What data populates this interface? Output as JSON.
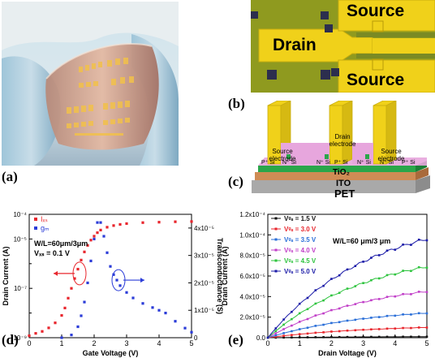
{
  "panels": {
    "a": {
      "letter": "(a)"
    },
    "b": {
      "letter": "(b)",
      "source_top": "Source",
      "drain": "Drain",
      "source_bottom": "Source"
    },
    "c": {
      "letter": "(c)",
      "electrodes": [
        "Source\nelectrode",
        "Drain\nelectrode",
        "Source\nelectrode"
      ],
      "doping": [
        "P⁺ Si",
        "N⁺ Si",
        "N⁺ Si",
        "P⁺ Si",
        "N⁺ Si",
        "N⁺ Si",
        "P⁺ Si"
      ],
      "layers": [
        "TiO₂",
        "ITO",
        "PET"
      ]
    },
    "d": {
      "letter": "(d)"
    },
    "e": {
      "letter": "(e)"
    }
  },
  "colors": {
    "ids": "#e8262d",
    "gm": "#2b3cd8",
    "gold": "#f0d11a",
    "pet": "#b0b0b0",
    "ito": "#cf8c55",
    "tio2": "#2aa64a",
    "si": "#e7a6dd"
  },
  "chart_data": [
    {
      "type": "scatter",
      "panel": "d",
      "xlabel": "Gate Voltage (V)",
      "ylabel_left": "Drain Current (A)",
      "ylabel_right": "Transconductance (S)",
      "xlim": [
        0,
        5
      ],
      "ylim_left": [
        1e-09,
        0.0001
      ],
      "yscale_left": "log",
      "ylim_right": [
        0,
        4.5e-05
      ],
      "x_ticks": [
        "0",
        "1",
        "2",
        "3",
        "4",
        "5"
      ],
      "y_ticks_left": [
        "10⁻⁹",
        "10⁻⁷",
        "10⁻⁵"
      ],
      "y_top_label": "10⁻⁴",
      "y_ticks_right": [
        "0",
        "1x10⁻⁵",
        "2x10⁻⁵",
        "3x10⁻⁵",
        "4x10⁻⁵"
      ],
      "annotation": [
        "W/L=60μm/3μm",
        "Vₓₛ = 0.1 V"
      ],
      "series": [
        {
          "name": "Iₓₛ",
          "color": "#e8262d",
          "points": [
            [
              0,
              1.2e-09
            ],
            [
              0.2,
              1.5e-09
            ],
            [
              0.4,
              1.8e-09
            ],
            [
              0.6,
              2.5e-09
            ],
            [
              0.8,
              4e-09
            ],
            [
              1.0,
              8e-09
            ],
            [
              1.1,
              1.6e-08
            ],
            [
              1.2,
              4e-08
            ],
            [
              1.3,
              1e-07
            ],
            [
              1.4,
              2.5e-07
            ],
            [
              1.5,
              6e-07
            ],
            [
              1.6,
              1.4e-06
            ],
            [
              1.7,
              3e-06
            ],
            [
              1.8,
              5.5e-06
            ],
            [
              1.9,
              9e-06
            ],
            [
              2.0,
              1.3e-05
            ],
            [
              2.1,
              1.8e-05
            ],
            [
              2.2,
              2.3e-05
            ],
            [
              2.4,
              3e-05
            ],
            [
              2.6,
              3.5e-05
            ],
            [
              2.8,
              3.9e-05
            ],
            [
              3.0,
              4.2e-05
            ],
            [
              3.5,
              4.6e-05
            ],
            [
              4.0,
              4.8e-05
            ],
            [
              4.5,
              5e-05
            ],
            [
              5.0,
              5.1e-05
            ]
          ]
        },
        {
          "name": "gₘ",
          "color": "#2b3cd8",
          "points": [
            [
              1.0,
              0
            ],
            [
              1.3,
              1e-06
            ],
            [
              1.5,
              4e-06
            ],
            [
              1.6,
              8e-06
            ],
            [
              1.7,
              1.3e-05
            ],
            [
              1.8,
              2e-05
            ],
            [
              1.9,
              2.8e-05
            ],
            [
              2.0,
              3.6e-05
            ],
            [
              2.1,
              4.2e-05
            ],
            [
              2.2,
              4.2e-05
            ],
            [
              2.3,
              3.7e-05
            ],
            [
              2.4,
              3.1e-05
            ],
            [
              2.5,
              2.6e-05
            ],
            [
              2.6,
              2.3e-05
            ],
            [
              2.7,
              2.1e-05
            ],
            [
              2.8,
              1.9e-05
            ],
            [
              3.0,
              1.65e-05
            ],
            [
              3.2,
              1.45e-05
            ],
            [
              3.5,
              1.25e-05
            ],
            [
              3.8,
              1.1e-05
            ],
            [
              4.0,
              1e-05
            ],
            [
              4.2,
              9e-06
            ],
            [
              4.5,
              6e-06
            ],
            [
              4.8,
              3.5e-06
            ],
            [
              5.0,
              2e-06
            ]
          ]
        }
      ]
    },
    {
      "type": "line",
      "panel": "e",
      "xlabel": "Drain Voltage (V)",
      "ylabel": "Drain Current (A)",
      "xlim": [
        0,
        5
      ],
      "ylim": [
        0,
        0.00012
      ],
      "x_ticks": [
        "0",
        "1",
        "2",
        "3",
        "4",
        "5"
      ],
      "y_ticks": [
        "0.0",
        "2.0x10⁻⁵",
        "4.0x10⁻⁵",
        "6.0x10⁻⁵",
        "8.0x10⁻⁵",
        "1.0x10⁻⁴",
        "1.2x10⁻⁴"
      ],
      "annotation": "W/L=60 μm/3 μm",
      "series": [
        {
          "name": "Vᵍₛ = 1.5 V",
          "color": "#111111",
          "final": 1e-06
        },
        {
          "name": "Vᵍₛ = 3.0 V",
          "color": "#e8262d",
          "final": 1e-05
        },
        {
          "name": "Vᵍₛ = 3.5 V",
          "color": "#2b6fd8",
          "final": 2.4e-05
        },
        {
          "name": "Vᵍₛ = 4.0 V",
          "color": "#c13fc8",
          "final": 4.5e-05
        },
        {
          "name": "Vᵍₛ = 4.5 V",
          "color": "#2fc43f",
          "final": 6.9e-05
        },
        {
          "name": "Vᵍₛ = 5.0 V",
          "color": "#1c1ca8",
          "final": 9.6e-05
        }
      ]
    }
  ]
}
